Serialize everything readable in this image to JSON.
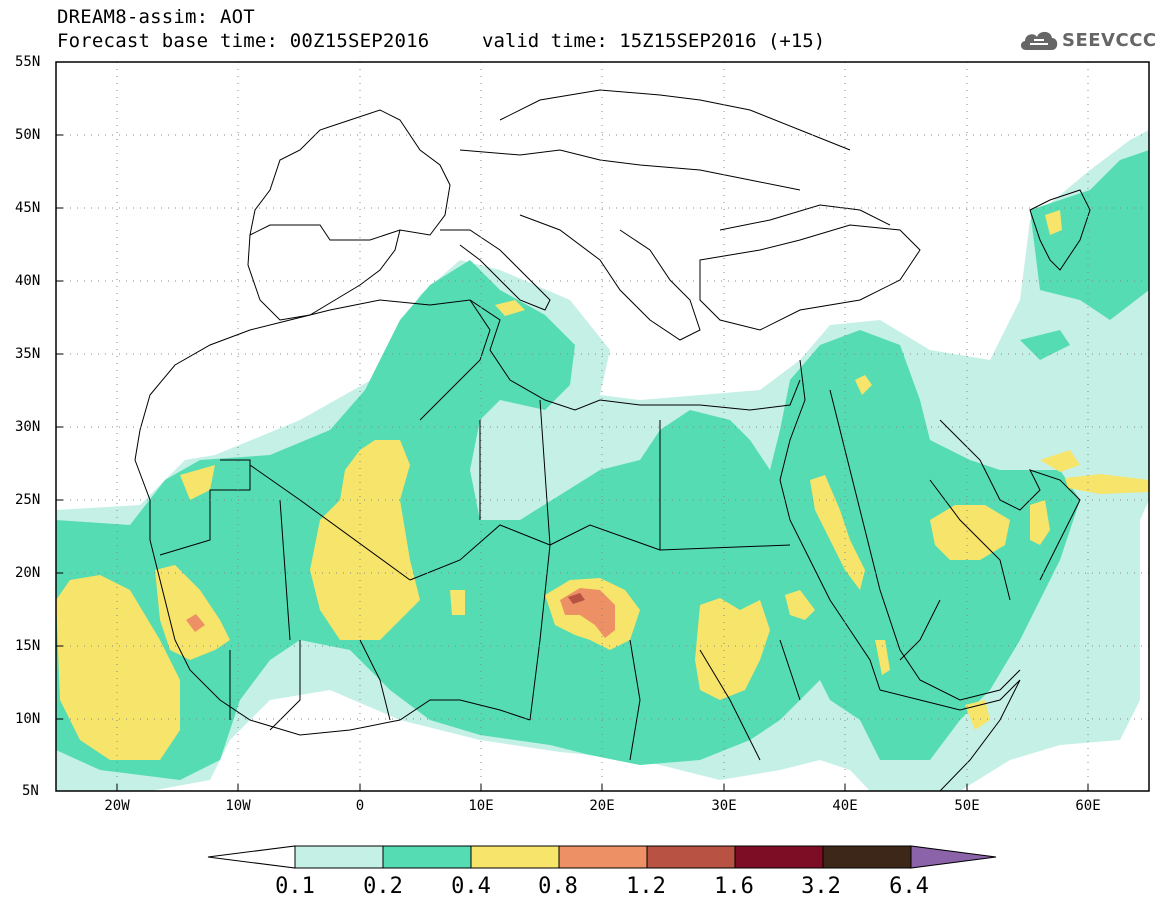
{
  "title": {
    "line1": "DREAM8-assim: AOT",
    "line2": "Forecast base time: 00Z15SEP2016",
    "valid": "valid time: 15Z15SEP2016 (+15)"
  },
  "logo": {
    "text": "SEEVCCC",
    "icon": "cloud-icon"
  },
  "map": {
    "projection": "lat-lon",
    "lon_range": [
      -25,
      65
    ],
    "lat_range": [
      5,
      55
    ],
    "lat_labels": [
      "55N",
      "50N",
      "45N",
      "40N",
      "35N",
      "30N",
      "25N",
      "20N",
      "15N",
      "10N",
      "5N"
    ],
    "lon_labels": [
      "20W",
      "10W",
      "0",
      "10E",
      "20E",
      "30E",
      "40E",
      "50E",
      "60E"
    ]
  },
  "colorbar": {
    "labels": [
      "0.1",
      "0.2",
      "0.4",
      "0.8",
      "1.2",
      "1.6",
      "3.2",
      "6.4"
    ],
    "colors": [
      "#ffffff",
      "#c5f0e6",
      "#55dcb2",
      "#f7e46b",
      "#ed9065",
      "#b85242",
      "#7c0d25",
      "#3c2718",
      "#8b63a8"
    ],
    "direction": "both-ends-triangular"
  },
  "colors": {
    "level1": "#c5f0e6",
    "level2": "#55dcb2",
    "level3": "#f7e46b",
    "level4": "#ed9065",
    "level5": "#b85242"
  }
}
